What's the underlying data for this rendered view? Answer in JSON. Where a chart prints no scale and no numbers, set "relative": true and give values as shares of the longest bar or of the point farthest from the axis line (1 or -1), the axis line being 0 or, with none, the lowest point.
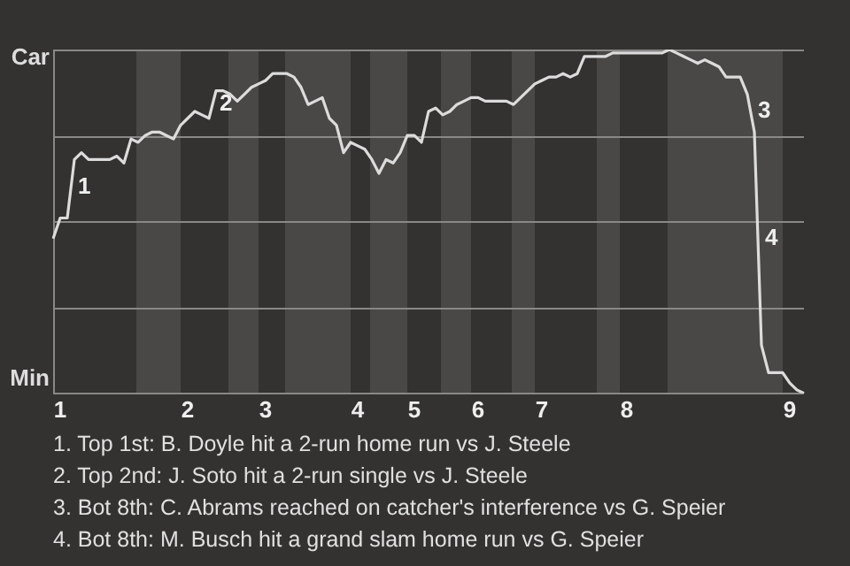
{
  "chart_data": {
    "type": "line",
    "relative": true,
    "marker": "none",
    "grid": "y",
    "legend": false,
    "color": "#dcdcdc",
    "categories": [
      null,
      "1",
      null,
      null,
      null,
      null,
      null,
      null,
      null,
      null,
      null,
      null,
      null,
      null,
      null,
      null,
      null,
      null,
      null,
      "2",
      null,
      null,
      null,
      null,
      null,
      null,
      null,
      null,
      null,
      null,
      "3",
      null,
      null,
      null,
      null,
      null,
      null,
      null,
      null,
      null,
      null,
      null,
      null,
      "4",
      null,
      null,
      null,
      null,
      null,
      null,
      null,
      "5",
      null,
      null,
      null,
      null,
      null,
      null,
      null,
      null,
      "6",
      null,
      null,
      null,
      null,
      null,
      null,
      null,
      null,
      "7",
      null,
      null,
      null,
      null,
      null,
      null,
      null,
      null,
      null,
      null,
      null,
      "8",
      null,
      null,
      null,
      null,
      null,
      null,
      null,
      null,
      null,
      null,
      null,
      null,
      null,
      null,
      null,
      null,
      null,
      null,
      null,
      null,
      null,
      null,
      "9",
      null,
      null
    ],
    "values": [
      0.45,
      0.51,
      0.51,
      0.68,
      0.7,
      0.68,
      0.68,
      0.68,
      0.68,
      0.69,
      0.67,
      0.74,
      0.73,
      0.75,
      0.76,
      0.76,
      0.75,
      0.74,
      0.78,
      0.8,
      0.82,
      0.81,
      0.8,
      0.88,
      0.88,
      0.87,
      0.85,
      0.87,
      0.89,
      0.9,
      0.91,
      0.93,
      0.93,
      0.93,
      0.92,
      0.89,
      0.84,
      0.85,
      0.86,
      0.8,
      0.78,
      0.7,
      0.73,
      0.72,
      0.71,
      0.68,
      0.64,
      0.68,
      0.67,
      0.7,
      0.75,
      0.75,
      0.73,
      0.82,
      0.83,
      0.81,
      0.82,
      0.84,
      0.85,
      0.86,
      0.86,
      0.85,
      0.85,
      0.85,
      0.85,
      0.84,
      0.86,
      0.88,
      0.9,
      0.91,
      0.92,
      0.92,
      0.93,
      0.92,
      0.93,
      0.98,
      0.98,
      0.98,
      0.98,
      0.99,
      0.99,
      0.99,
      0.99,
      0.99,
      0.99,
      0.99,
      0.99,
      1,
      0.99,
      0.98,
      0.97,
      0.96,
      0.97,
      0.96,
      0.95,
      0.92,
      0.92,
      0.92,
      0.87,
      0.76,
      0.14,
      0.06,
      0.06,
      0.06,
      0.03,
      0.01,
      0
    ],
    "annotations": [
      "Car",
      "Min",
      "1",
      "2",
      "3",
      "4",
      "1. Top 1st: B. Doyle hit a 2-run home run vs J. Steele",
      "2. Top 2nd: J. Soto hit a 2-run single vs J. Steele",
      "3. Bot 8th: C. Abrams reached on catcher's interference vs G. Speier",
      "4. Bot 8th: M. Busch hit a grand slam home run vs G. Speier"
    ]
  }
}
